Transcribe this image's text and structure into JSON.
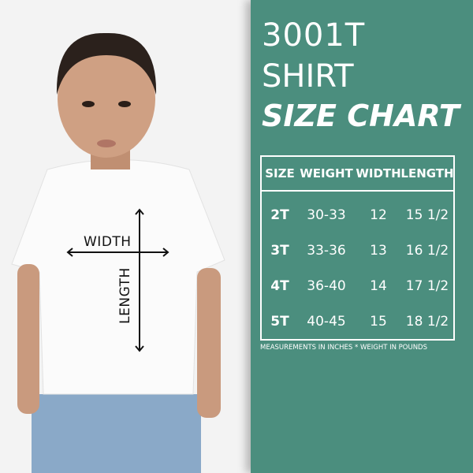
{
  "title": {
    "line1": "3001T",
    "line2": "SHIRT",
    "line3": "SIZE CHART"
  },
  "table": {
    "headers": [
      "SIZE",
      "WEIGHT",
      "WIDTH",
      "LENGTH"
    ],
    "rows": [
      {
        "size": "2T",
        "weight": "30-33",
        "width": "12",
        "length": "15 1/2"
      },
      {
        "size": "3T",
        "weight": "33-36",
        "width": "13",
        "length": "16 1/2"
      },
      {
        "size": "4T",
        "weight": "36-40",
        "width": "14",
        "length": "17 1/2"
      },
      {
        "size": "5T",
        "weight": "40-45",
        "width": "15",
        "length": "18 1/2"
      }
    ]
  },
  "note": "MEASUREMENTS IN INCHES * WEIGHT IN POUNDS",
  "diagram": {
    "width_label": "WIDTH",
    "length_label": "LENGTH"
  },
  "colors": {
    "panel": "#4b8e7e",
    "text": "#ffffff"
  }
}
